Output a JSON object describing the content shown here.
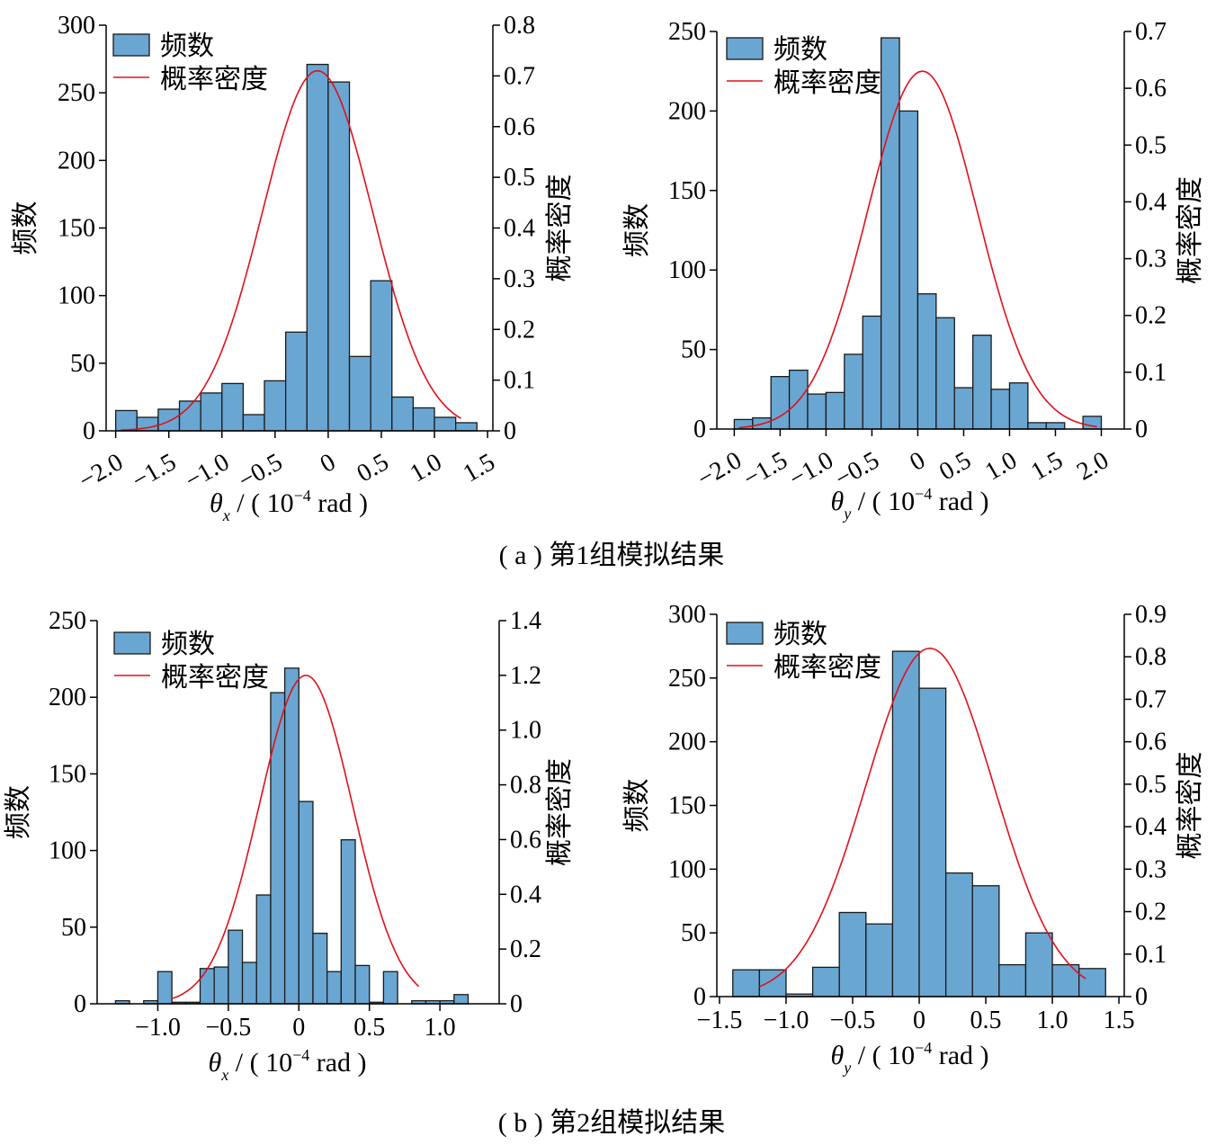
{
  "chart_data": [
    {
      "type": "bar",
      "id": "a-left",
      "xlabel_symbol": "θ",
      "xlabel_sub": "x",
      "xlabel_unit_pre": " / ( 10",
      "xlabel_exp": "−4",
      "xlabel_unit_post": " rad )",
      "ylabel": "频数",
      "y2label": "概率密度",
      "legend": [
        "频数",
        "概率密度"
      ],
      "legend_placement": "top-left",
      "xlim": [
        -2.09,
        1.55
      ],
      "ylim": [
        0,
        300
      ],
      "y2lim": [
        0,
        0.8
      ],
      "xticks": [
        -2.0,
        -1.5,
        -1.0,
        -0.5,
        0,
        0.5,
        1.0,
        1.5
      ],
      "xtick_labels": [
        "−2.0",
        "−1.5",
        "−1.0",
        "−0.5",
        "0",
        "0.5",
        "1.0",
        "1.5"
      ],
      "xticks_rotated": true,
      "yticks": [
        0,
        50,
        100,
        150,
        200,
        250,
        300
      ],
      "y2ticks": [
        0,
        0.1,
        0.2,
        0.3,
        0.4,
        0.5,
        0.6,
        0.7,
        0.8
      ],
      "y2tick_labels": [
        "0",
        "0.1",
        "0.2",
        "0.3",
        "0.4",
        "0.5",
        "0.6",
        "0.7",
        "0.8"
      ],
      "bin_start": -2.0,
      "bin_width": 0.2,
      "values": [
        15,
        10,
        16,
        22,
        28,
        35,
        12,
        37,
        73,
        271,
        258,
        55,
        111,
        25,
        17,
        10,
        6
      ],
      "density_curve": {
        "mean": -0.1,
        "std": 0.52,
        "peak": 0.71,
        "range": [
          -1.95,
          1.25
        ]
      }
    },
    {
      "type": "bar",
      "id": "a-right",
      "xlabel_symbol": "θ",
      "xlabel_sub": "y",
      "xlabel_unit_pre": " / ( 10",
      "xlabel_exp": "−4",
      "xlabel_unit_post": " rad )",
      "ylabel": "频数",
      "y2label": "概率密度",
      "legend": [
        "频数",
        "概率密度"
      ],
      "legend_placement": "top-left",
      "xlim": [
        -2.19,
        2.25
      ],
      "ylim": [
        0,
        250
      ],
      "y2lim": [
        0,
        0.7
      ],
      "xticks": [
        -2.0,
        -1.5,
        -1.0,
        -0.5,
        0,
        0.5,
        1.0,
        1.5,
        2.0
      ],
      "xtick_labels": [
        "−2.0",
        "−1.5",
        "−1.0",
        "−0.5",
        "0",
        "0.5",
        "1.0",
        "1.5",
        "2.0"
      ],
      "xticks_rotated": true,
      "yticks": [
        0,
        50,
        100,
        150,
        200,
        250
      ],
      "y2ticks": [
        0,
        0.1,
        0.2,
        0.3,
        0.4,
        0.5,
        0.6,
        0.7
      ],
      "y2tick_labels": [
        "0",
        "0.1",
        "0.2",
        "0.3",
        "0.4",
        "0.5",
        "0.6",
        "0.7"
      ],
      "bin_start": -2.0,
      "bin_width": 0.2,
      "values": [
        6,
        7,
        33,
        37,
        22,
        23,
        47,
        71,
        246,
        200,
        85,
        70,
        26,
        59,
        25,
        29,
        4,
        4,
        0,
        8
      ],
      "density_curve": {
        "mean": 0.05,
        "std": 0.6,
        "peak": 0.63,
        "range": [
          -1.95,
          1.95
        ]
      }
    },
    {
      "type": "bar",
      "id": "b-left",
      "xlabel_symbol": "θ",
      "xlabel_sub": "x",
      "xlabel_unit_pre": " / ( 10",
      "xlabel_exp": "−4",
      "xlabel_unit_post": " rad )",
      "ylabel": "频数",
      "y2label": "概率密度",
      "legend": [
        "频数",
        "概率密度"
      ],
      "legend_placement": "top-left",
      "xlim": [
        -1.43,
        1.42
      ],
      "ylim": [
        0,
        250
      ],
      "y2lim": [
        0,
        1.4
      ],
      "xticks": [
        -1.0,
        -0.5,
        0,
        0.5,
        1.0
      ],
      "xtick_labels": [
        "−1.0",
        "−0.5",
        "0",
        "0.5",
        "1.0"
      ],
      "xticks_rotated": false,
      "yticks": [
        0,
        50,
        100,
        150,
        200,
        250
      ],
      "y2ticks": [
        0,
        0.2,
        0.4,
        0.6,
        0.8,
        1.0,
        1.2,
        1.4
      ],
      "y2tick_labels": [
        "0",
        "0.2",
        "0.4",
        "0.6",
        "0.8",
        "1.0",
        "1.2",
        "1.4"
      ],
      "bin_start": -1.3,
      "bin_width": 0.1,
      "values": [
        2,
        0,
        2,
        21,
        1,
        1,
        23,
        24,
        48,
        27,
        71,
        203,
        219,
        132,
        46,
        21,
        107,
        25,
        1,
        21,
        0,
        2,
        2,
        2,
        6
      ],
      "density_curve": {
        "mean": 0.05,
        "std": 0.33,
        "peak": 1.2,
        "range": [
          -0.9,
          0.85
        ]
      }
    },
    {
      "type": "bar",
      "id": "b-right",
      "xlabel_symbol": "θ",
      "xlabel_sub": "y",
      "xlabel_unit_pre": " / ( 10",
      "xlabel_exp": "−4",
      "xlabel_unit_post": " rad )",
      "ylabel": "频数",
      "y2label": "概率密度",
      "legend": [
        "频数",
        "概率密度"
      ],
      "legend_placement": "top-left",
      "xlim": [
        -1.52,
        1.54
      ],
      "ylim": [
        0,
        300
      ],
      "y2lim": [
        0,
        0.9
      ],
      "xticks": [
        -1.5,
        -1.0,
        -0.5,
        0,
        0.5,
        1.0,
        1.5
      ],
      "xtick_labels": [
        "−1.5",
        "−1.0",
        "−0.5",
        "0",
        "0.5",
        "1.0",
        "1.5"
      ],
      "xticks_rotated": false,
      "yticks": [
        0,
        50,
        100,
        150,
        200,
        250,
        300
      ],
      "y2ticks": [
        0,
        0.1,
        0.2,
        0.3,
        0.4,
        0.5,
        0.6,
        0.7,
        0.8,
        0.9
      ],
      "y2tick_labels": [
        "0",
        "0.1",
        "0.2",
        "0.3",
        "0.4",
        "0.5",
        "0.6",
        "0.7",
        "0.8",
        "0.9"
      ],
      "bin_start": -1.4,
      "bin_width": 0.2,
      "values": [
        21,
        21,
        2,
        23,
        66,
        57,
        271,
        242,
        97,
        87,
        25,
        50,
        25,
        22
      ],
      "density_curve": {
        "mean": 0.08,
        "std": 0.48,
        "peak": 0.82,
        "range": [
          -1.2,
          1.25
        ]
      }
    }
  ],
  "captions": [
    "( a ) 第1组模拟结果",
    "( b ) 第2组模拟结果"
  ],
  "colors": {
    "bar": "#6aa6d2",
    "bar_edge": "#1a1a1a",
    "curve": "#e0101a"
  }
}
